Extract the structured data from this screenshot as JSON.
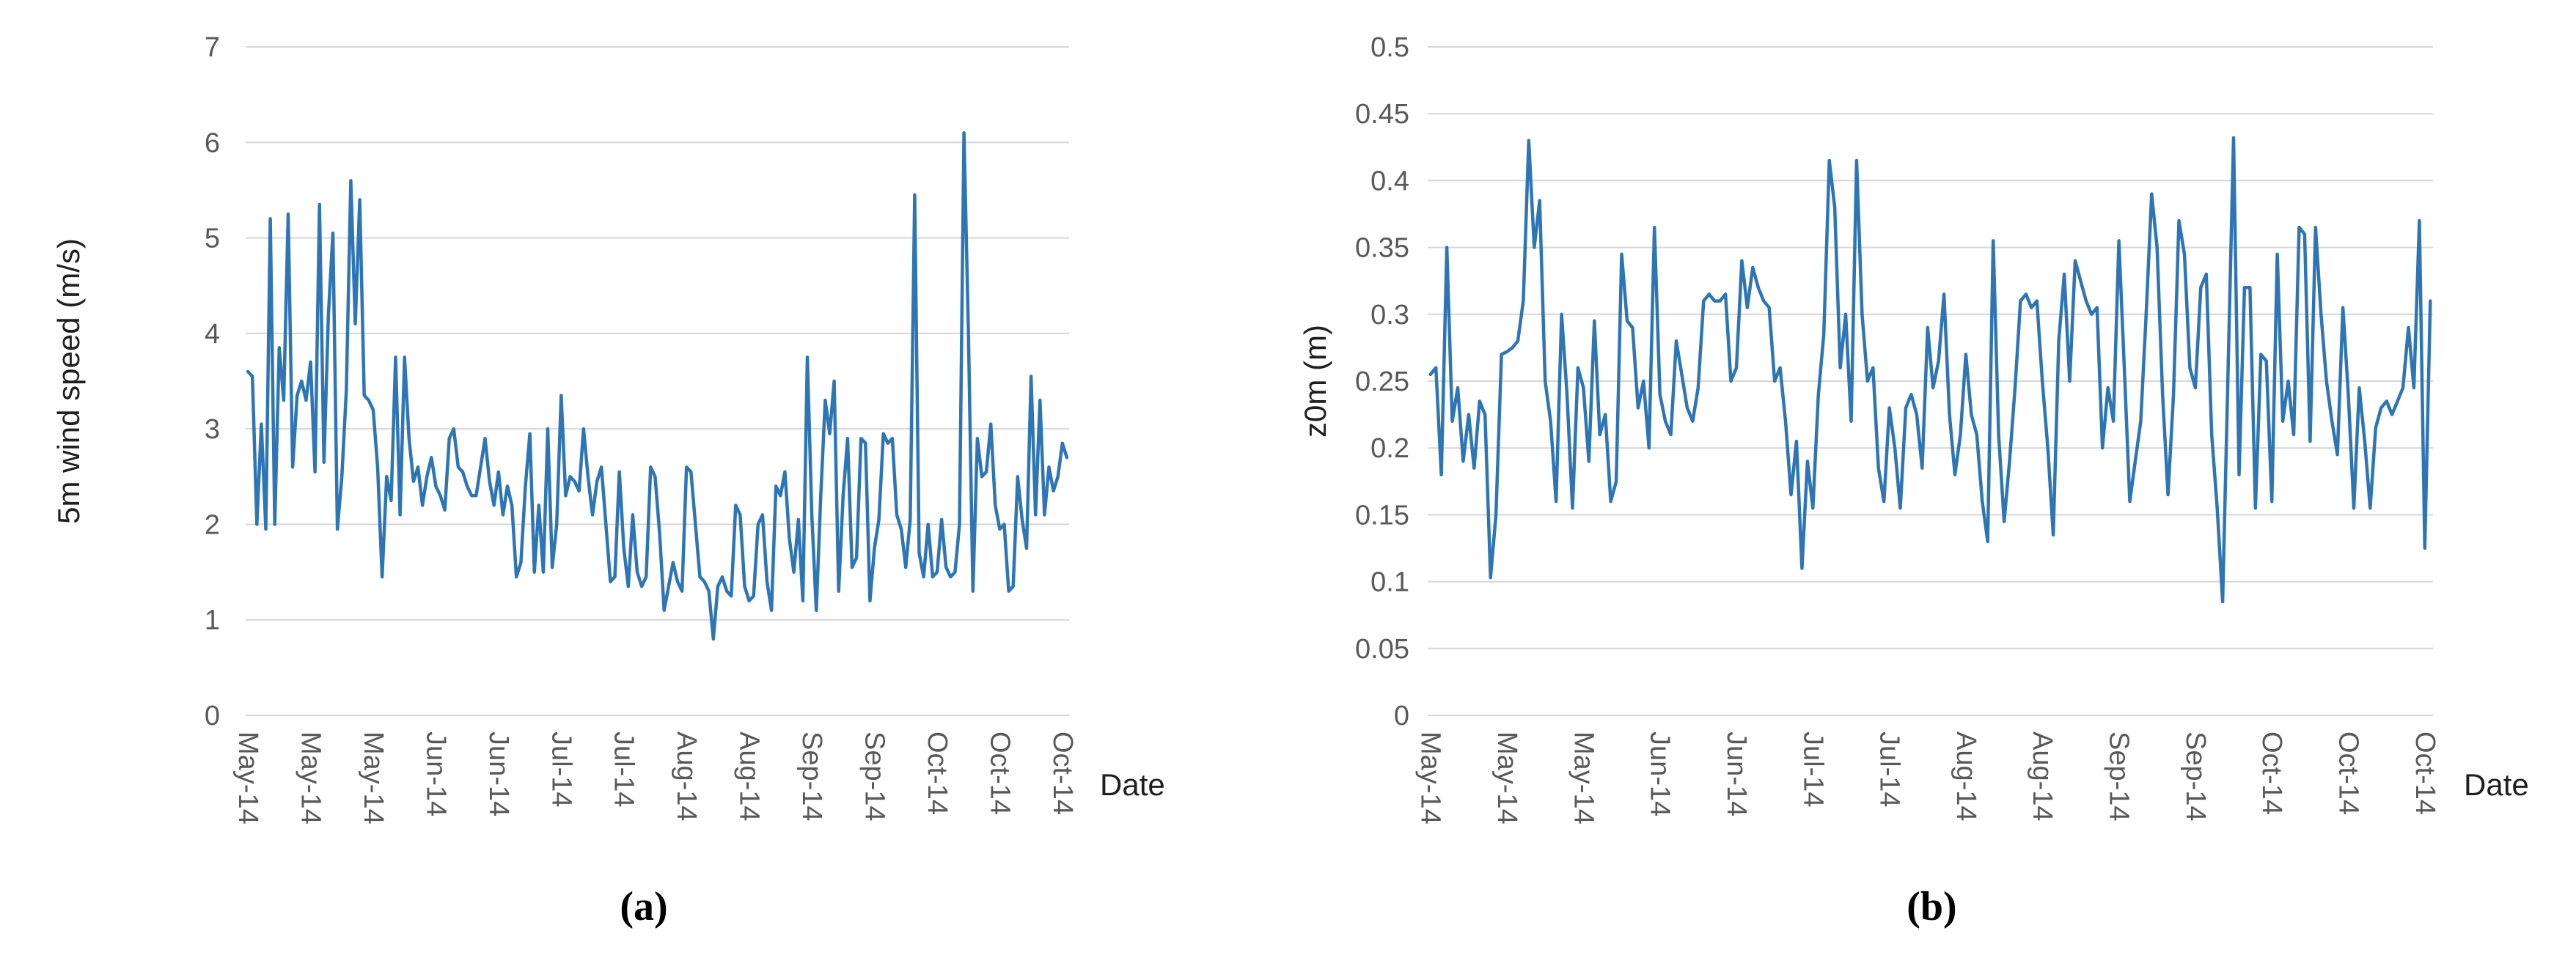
{
  "figure": {
    "captions": [
      "(a)",
      "(b)"
    ],
    "colors": {
      "line": "#2E75B6",
      "grid": "#D6D6D6",
      "tick_text": "#595959",
      "title_text": "#1F1F1F"
    }
  },
  "chart_data": [
    {
      "type": "line",
      "panel": "a",
      "ylabel": "5m wind speed (m/s)",
      "xlabel": "Date",
      "ylim": [
        0,
        7
      ],
      "yticks": [
        0,
        1,
        2,
        3,
        4,
        5,
        6,
        7
      ],
      "yticklabels": [
        "0",
        "1",
        "2",
        "3",
        "4",
        "5",
        "6",
        "7"
      ],
      "grid": true,
      "legend": "none",
      "x_tick_labels": [
        "May-14",
        "May-14",
        "May-14",
        "Jun-14",
        "Jun-14",
        "Jul-14",
        "Jul-14",
        "Aug-14",
        "Aug-14",
        "Sep-14",
        "Sep-14",
        "Oct-14",
        "Oct-14",
        "Oct-14"
      ],
      "x_range_note": "daily values May 1 2014 - Oct 31 2014, ticks every 14 days",
      "values": [
        3.6,
        3.55,
        2.0,
        3.05,
        1.95,
        5.2,
        2.0,
        3.85,
        3.3,
        5.25,
        2.6,
        3.35,
        3.5,
        3.3,
        3.7,
        2.55,
        5.35,
        2.65,
        4.2,
        5.05,
        1.95,
        2.5,
        3.4,
        5.6,
        4.1,
        5.4,
        3.35,
        3.3,
        3.2,
        2.6,
        1.45,
        2.5,
        2.25,
        3.75,
        2.1,
        3.75,
        2.9,
        2.45,
        2.6,
        2.2,
        2.5,
        2.7,
        2.4,
        2.3,
        2.15,
        2.9,
        3.0,
        2.6,
        2.55,
        2.4,
        2.3,
        2.3,
        2.6,
        2.9,
        2.45,
        2.2,
        2.55,
        2.1,
        2.4,
        2.2,
        1.45,
        1.6,
        2.4,
        2.95,
        1.5,
        2.2,
        1.5,
        3.0,
        1.55,
        2.0,
        3.35,
        2.3,
        2.5,
        2.45,
        2.35,
        3.0,
        2.5,
        2.1,
        2.45,
        2.6,
        2.0,
        1.4,
        1.45,
        2.55,
        1.75,
        1.35,
        2.1,
        1.5,
        1.35,
        1.45,
        2.6,
        2.5,
        1.9,
        1.1,
        1.35,
        1.6,
        1.4,
        1.3,
        2.6,
        2.55,
        2.0,
        1.45,
        1.4,
        1.3,
        0.8,
        1.35,
        1.45,
        1.3,
        1.25,
        2.2,
        2.1,
        1.35,
        1.2,
        1.25,
        2.0,
        2.1,
        1.4,
        1.1,
        2.4,
        2.3,
        2.55,
        1.85,
        1.5,
        2.05,
        1.2,
        3.75,
        2.1,
        1.1,
        2.3,
        3.3,
        2.95,
        3.5,
        1.3,
        2.3,
        2.9,
        1.55,
        1.65,
        2.9,
        2.85,
        1.2,
        1.75,
        2.05,
        2.95,
        2.85,
        2.9,
        2.1,
        1.95,
        1.55,
        2.05,
        5.45,
        1.7,
        1.45,
        2.0,
        1.45,
        1.5,
        2.05,
        1.55,
        1.45,
        1.5,
        2.0,
        6.1,
        4.0,
        1.3,
        2.9,
        2.5,
        2.55,
        3.05,
        2.2,
        1.95,
        2.0,
        1.3,
        1.35,
        2.5,
        2.05,
        1.75,
        3.55,
        2.1,
        3.3,
        2.1,
        2.6,
        2.35,
        2.5,
        2.85,
        2.7
      ]
    },
    {
      "type": "line",
      "panel": "b",
      "ylabel": "z0m (m)",
      "xlabel": "Date",
      "ylim": [
        0,
        0.5
      ],
      "yticks": [
        0,
        0.05,
        0.1,
        0.15,
        0.2,
        0.25,
        0.3,
        0.35,
        0.4,
        0.45,
        0.5
      ],
      "yticklabels": [
        "0",
        "0.05",
        "0.1",
        "0.15",
        "0.2",
        "0.25",
        "0.3",
        "0.35",
        "0.4",
        "0.45",
        "0.5"
      ],
      "grid": true,
      "legend": "none",
      "x_tick_labels": [
        "May-14",
        "May-14",
        "May-14",
        "Jun-14",
        "Jun-14",
        "Jul-14",
        "Jul-14",
        "Aug-14",
        "Aug-14",
        "Sep-14",
        "Sep-14",
        "Oct-14",
        "Oct-14",
        "Oct-14"
      ],
      "x_range_note": "daily values May 1 2014 - Oct 31 2014, ticks every 14 days",
      "values": [
        0.255,
        0.26,
        0.18,
        0.35,
        0.22,
        0.245,
        0.19,
        0.225,
        0.185,
        0.235,
        0.225,
        0.103,
        0.15,
        0.27,
        0.272,
        0.275,
        0.28,
        0.31,
        0.43,
        0.35,
        0.385,
        0.25,
        0.22,
        0.16,
        0.3,
        0.24,
        0.155,
        0.26,
        0.245,
        0.19,
        0.295,
        0.21,
        0.225,
        0.16,
        0.175,
        0.345,
        0.295,
        0.29,
        0.23,
        0.25,
        0.2,
        0.365,
        0.24,
        0.22,
        0.21,
        0.28,
        0.255,
        0.23,
        0.22,
        0.245,
        0.31,
        0.315,
        0.31,
        0.31,
        0.315,
        0.25,
        0.26,
        0.34,
        0.305,
        0.335,
        0.32,
        0.31,
        0.305,
        0.25,
        0.26,
        0.22,
        0.165,
        0.205,
        0.11,
        0.19,
        0.155,
        0.24,
        0.285,
        0.415,
        0.38,
        0.26,
        0.3,
        0.22,
        0.415,
        0.3,
        0.25,
        0.26,
        0.185,
        0.16,
        0.23,
        0.2,
        0.155,
        0.23,
        0.24,
        0.225,
        0.185,
        0.29,
        0.245,
        0.265,
        0.315,
        0.225,
        0.18,
        0.21,
        0.27,
        0.225,
        0.21,
        0.16,
        0.13,
        0.355,
        0.21,
        0.145,
        0.19,
        0.245,
        0.31,
        0.315,
        0.305,
        0.31,
        0.25,
        0.2,
        0.135,
        0.28,
        0.33,
        0.25,
        0.34,
        0.325,
        0.31,
        0.3,
        0.305,
        0.2,
        0.245,
        0.22,
        0.355,
        0.26,
        0.16,
        0.19,
        0.22,
        0.3,
        0.39,
        0.35,
        0.24,
        0.165,
        0.24,
        0.37,
        0.345,
        0.26,
        0.245,
        0.32,
        0.33,
        0.21,
        0.155,
        0.085,
        0.26,
        0.432,
        0.18,
        0.32,
        0.32,
        0.155,
        0.27,
        0.265,
        0.16,
        0.345,
        0.22,
        0.25,
        0.21,
        0.365,
        0.36,
        0.205,
        0.365,
        0.3,
        0.25,
        0.22,
        0.195,
        0.305,
        0.24,
        0.155,
        0.245,
        0.205,
        0.155,
        0.215,
        0.23,
        0.235,
        0.225,
        0.235,
        0.245,
        0.29,
        0.245,
        0.37,
        0.125,
        0.31
      ]
    }
  ]
}
